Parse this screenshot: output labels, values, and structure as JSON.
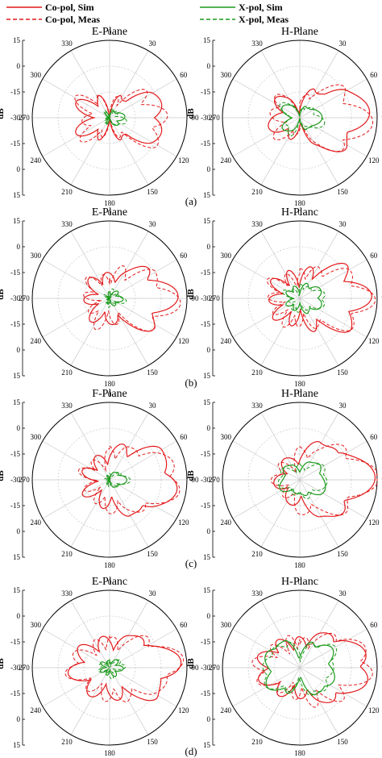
{
  "legend": {
    "entries": [
      {
        "label": "Co-pol, Sim",
        "color": "#e31a1c",
        "dash": "solid"
      },
      {
        "label": "X-pol, Sim",
        "color": "#1a9a1a",
        "dash": "solid"
      },
      {
        "label": "Co-pol, Meas",
        "color": "#e31a1c",
        "dash": "dashed"
      },
      {
        "label": "X-pol, Meas",
        "color": "#1a9a1a",
        "dash": "dashed"
      }
    ]
  },
  "axis": {
    "radial_unit": "dB",
    "radial_ticks": [
      "15",
      "0",
      "-15",
      "-30",
      "-15",
      "0",
      "15"
    ],
    "angle_ticks": [
      "0",
      "30",
      "60",
      "90",
      "120",
      "150",
      "180",
      "210",
      "240",
      "270",
      "300",
      "330"
    ]
  },
  "colors": {
    "copol": "#e31a1c",
    "xpol": "#1a9a1a",
    "grid": "#c8c8c8"
  },
  "chart_data": [
    {
      "type": "polar",
      "panel": "(a)",
      "title": "E-Plane",
      "rlim": [
        -30,
        15
      ],
      "theta_unit": "deg",
      "series": [
        {
          "name": "Co-pol, Sim",
          "theta": [
            0,
            30,
            60,
            90,
            120,
            150,
            180,
            210,
            240,
            270,
            300,
            330
          ],
          "r": [
            -25,
            -15,
            0,
            5,
            0,
            -15,
            -25,
            -15,
            -8,
            -12,
            -8,
            -15
          ]
        },
        {
          "name": "X-pol, Sim",
          "theta": [
            0,
            30,
            60,
            90,
            120,
            150,
            180,
            210,
            240,
            270,
            300,
            330
          ],
          "r": [
            -29,
            -25,
            -22,
            -21,
            -22,
            -25,
            -29,
            -26,
            -27,
            -28,
            -27,
            -26
          ]
        }
      ]
    },
    {
      "type": "polar",
      "panel": "(a)",
      "title": "H-Plane",
      "rlim": [
        -30,
        15
      ],
      "theta_unit": "deg",
      "series": [
        {
          "name": "Co-pol, Sim",
          "theta": [
            0,
            30,
            60,
            90,
            120,
            150,
            180,
            210,
            240,
            270,
            300,
            330
          ],
          "r": [
            -22,
            -10,
            5,
            12,
            5,
            -10,
            -22,
            -15,
            -10,
            -12,
            -10,
            -15
          ]
        },
        {
          "name": "X-pol, Sim",
          "theta": [
            0,
            30,
            60,
            90,
            120,
            150,
            180,
            210,
            240,
            270,
            300,
            330
          ],
          "r": [
            -28,
            -22,
            -18,
            -17,
            -18,
            -22,
            -28,
            -20,
            -18,
            -22,
            -18,
            -20
          ]
        }
      ]
    },
    {
      "type": "polar",
      "panel": "(b)",
      "title": "E-Plane",
      "rlim": [
        -30,
        15
      ],
      "theta_unit": "deg",
      "series": [
        {
          "name": "Co-pol, Sim",
          "theta": [
            0,
            30,
            60,
            90,
            120,
            150,
            180,
            210,
            240,
            270,
            300,
            330
          ],
          "r": [
            -15,
            -10,
            3,
            10,
            3,
            -10,
            -15,
            -12,
            -14,
            -15,
            -14,
            -12
          ]
        },
        {
          "name": "X-pol, Sim",
          "theta": [
            0,
            30,
            60,
            90,
            120,
            150,
            180,
            210,
            240,
            270,
            300,
            330
          ],
          "r": [
            -26,
            -25,
            -23,
            -22,
            -23,
            -25,
            -26,
            -27,
            -28,
            -29,
            -28,
            -27
          ]
        }
      ]
    },
    {
      "type": "polar",
      "panel": "(b)",
      "title": "H-Planc",
      "rlim": [
        -30,
        15
      ],
      "theta_unit": "deg",
      "series": [
        {
          "name": "Co-pol, Sim",
          "theta": [
            0,
            30,
            60,
            90,
            120,
            150,
            180,
            210,
            240,
            270,
            300,
            330
          ],
          "r": [
            -15,
            -8,
            5,
            12,
            5,
            -8,
            -15,
            -12,
            -10,
            -12,
            -10,
            -12
          ]
        },
        {
          "name": "X-pol, Sim",
          "theta": [
            0,
            30,
            60,
            90,
            120,
            150,
            180,
            210,
            240,
            270,
            300,
            330
          ],
          "r": [
            -24,
            -20,
            -17,
            -16,
            -17,
            -20,
            -24,
            -22,
            -21,
            -23,
            -21,
            -22
          ]
        }
      ]
    },
    {
      "type": "polar",
      "panel": "(c)",
      "title": "F-Plane",
      "rlim": [
        -30,
        15
      ],
      "theta_unit": "deg",
      "series": [
        {
          "name": "Co-pol, Sim",
          "theta": [
            0,
            30,
            60,
            90,
            120,
            150,
            180,
            210,
            240,
            270,
            300,
            330
          ],
          "r": [
            -12,
            -6,
            5,
            12,
            5,
            -6,
            -12,
            -14,
            -12,
            -15,
            -12,
            -14
          ]
        },
        {
          "name": "X-pol, Sim",
          "theta": [
            0,
            30,
            60,
            90,
            120,
            150,
            180,
            210,
            240,
            270,
            300,
            330
          ],
          "r": [
            -28,
            -25,
            -21,
            -20,
            -21,
            -25,
            -28,
            -27,
            -28,
            -29,
            -28,
            -27
          ]
        }
      ]
    },
    {
      "type": "polar",
      "panel": "(c)",
      "title": "H-Plane",
      "rlim": [
        -30,
        15
      ],
      "theta_unit": "deg",
      "series": [
        {
          "name": "Co-pol, Sim",
          "theta": [
            0,
            30,
            60,
            90,
            120,
            150,
            180,
            210,
            240,
            270,
            300,
            330
          ],
          "r": [
            -12,
            -5,
            7,
            14,
            7,
            -5,
            -12,
            -15,
            -13,
            -15,
            -13,
            -15
          ]
        },
        {
          "name": "X-pol, Sim",
          "theta": [
            0,
            30,
            60,
            90,
            120,
            150,
            180,
            210,
            240,
            270,
            300,
            330
          ],
          "r": [
            -22,
            -18,
            -14,
            -15,
            -14,
            -18,
            -22,
            -20,
            -17,
            -19,
            -17,
            -20
          ]
        }
      ]
    },
    {
      "type": "polar",
      "panel": "(d)",
      "title": "E-Planc",
      "rlim": [
        -30,
        15
      ],
      "theta_unit": "deg",
      "series": [
        {
          "name": "Co-pol, Sim",
          "theta": [
            0,
            30,
            60,
            90,
            120,
            150,
            180,
            210,
            240,
            270,
            300,
            330
          ],
          "r": [
            -12,
            -8,
            3,
            13,
            3,
            -8,
            -12,
            -10,
            -8,
            -5,
            -8,
            -10
          ]
        },
        {
          "name": "X-pol, Sim",
          "theta": [
            0,
            30,
            60,
            90,
            120,
            150,
            180,
            210,
            240,
            270,
            300,
            330
          ],
          "r": [
            -26,
            -24,
            -23,
            -22,
            -23,
            -24,
            -26,
            -25,
            -24,
            -25,
            -24,
            -25
          ]
        }
      ]
    },
    {
      "type": "polar",
      "panel": "(d)",
      "title": "H-Planc",
      "rlim": [
        -30,
        15
      ],
      "theta_unit": "deg",
      "series": [
        {
          "name": "Co-pol, Sim",
          "theta": [
            0,
            30,
            60,
            90,
            120,
            150,
            180,
            210,
            240,
            270,
            300,
            330
          ],
          "r": [
            -12,
            -6,
            5,
            14,
            5,
            -6,
            -12,
            -10,
            -6,
            -3,
            -6,
            -10
          ]
        },
        {
          "name": "X-pol, Sim",
          "theta": [
            0,
            30,
            60,
            90,
            120,
            150,
            180,
            210,
            240,
            270,
            300,
            330
          ],
          "r": [
            -22,
            -12,
            -8,
            -10,
            -8,
            -12,
            -22,
            -12,
            -8,
            -10,
            -8,
            -12
          ]
        }
      ]
    }
  ]
}
